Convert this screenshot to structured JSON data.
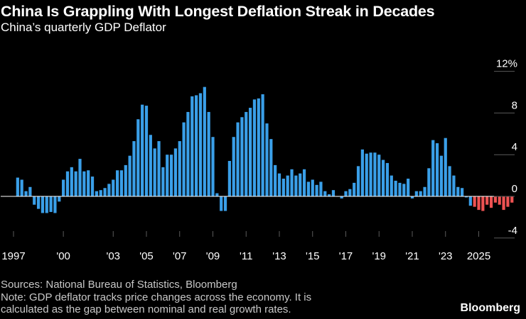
{
  "header": {
    "title": "China Is Grappling With Longest Deflation Streak in Decades",
    "subtitle": "China’s quarterly GDP Deflator"
  },
  "footer": {
    "sources": "Sources: National Bureau of Statistics, Bloomberg",
    "note_line1": "Note: GDP deflator tracks price changes across the economy. It is",
    "note_line2": "calculated as the gap between nominal and real growth rates.",
    "brand": "Bloomberg"
  },
  "colors": {
    "background": "#000000",
    "positive": "#3a9fe8",
    "negative": "#ee5252",
    "axis_text": "#ffffff",
    "zero_line": "#ffffff",
    "grid": "#5a5a5a"
  },
  "chart_data": {
    "type": "bar",
    "title": "China Is Grappling With Longest Deflation Streak in Decades",
    "subtitle": "China’s quarterly GDP Deflator",
    "xlabel": "",
    "ylabel": "",
    "ylim": [
      -5,
      13
    ],
    "y_ticks": [
      -4,
      0,
      4,
      8,
      12
    ],
    "y_tick_labels": [
      "-4",
      "0",
      "4",
      "8",
      "12%"
    ],
    "y_axis_side": "right",
    "x_tick_labels": [
      "1997",
      "'00",
      "'03",
      "'05",
      "'07",
      "'09",
      "'11",
      "'13",
      "'15",
      "'17",
      "'19",
      "'21",
      "'23",
      "2025"
    ],
    "x_tick_years": [
      1997,
      2000,
      2003,
      2005,
      2007,
      2009,
      2011,
      2013,
      2015,
      2017,
      2019,
      2021,
      2023,
      2025
    ],
    "x_start": 1997.25,
    "frequency": "quarterly",
    "grid": false,
    "legend": "none",
    "values": [
      1.8,
      1.6,
      0.5,
      0.9,
      -0.8,
      -1.2,
      -1.6,
      -1.6,
      -1.5,
      -1.6,
      -0.5,
      1.6,
      2.4,
      2.8,
      2.4,
      3.6,
      2.4,
      2.5,
      1.9,
      0.5,
      0.6,
      0.8,
      1.2,
      1.6,
      2.5,
      2.5,
      3.0,
      3.9,
      5.3,
      7.4,
      8.8,
      8.7,
      5.9,
      4.6,
      5.3,
      2.8,
      4.0,
      4.0,
      4.6,
      5.3,
      7.1,
      8.1,
      9.6,
      9.7,
      9.9,
      10.5,
      8.1,
      5.7,
      0.3,
      -1.4,
      -1.4,
      3.4,
      5.7,
      7.1,
      7.6,
      8.1,
      8.5,
      9.3,
      9.4,
      9.8,
      7.0,
      5.5,
      3.0,
      2.2,
      1.7,
      2.0,
      2.6,
      2.0,
      2.2,
      2.6,
      1.4,
      1.6,
      1.1,
      1.4,
      0.5,
      0.2,
      0.6,
      0.0,
      -0.2,
      0.5,
      0.7,
      1.3,
      2.9,
      4.5,
      4.1,
      4.2,
      4.2,
      4.0,
      3.5,
      3.2,
      2.0,
      1.5,
      1.3,
      1.2,
      1.7,
      -0.2,
      0.5,
      0.5,
      0.9,
      2.7,
      5.4,
      5.1,
      3.9,
      5.6,
      2.9,
      2.0,
      0.9,
      0.8,
      -0.1,
      -0.9,
      -1.0,
      -1.3,
      -1.4,
      -0.8,
      -1.1,
      -0.6,
      -0.8,
      -1.3,
      -1.0,
      -0.6
    ]
  }
}
